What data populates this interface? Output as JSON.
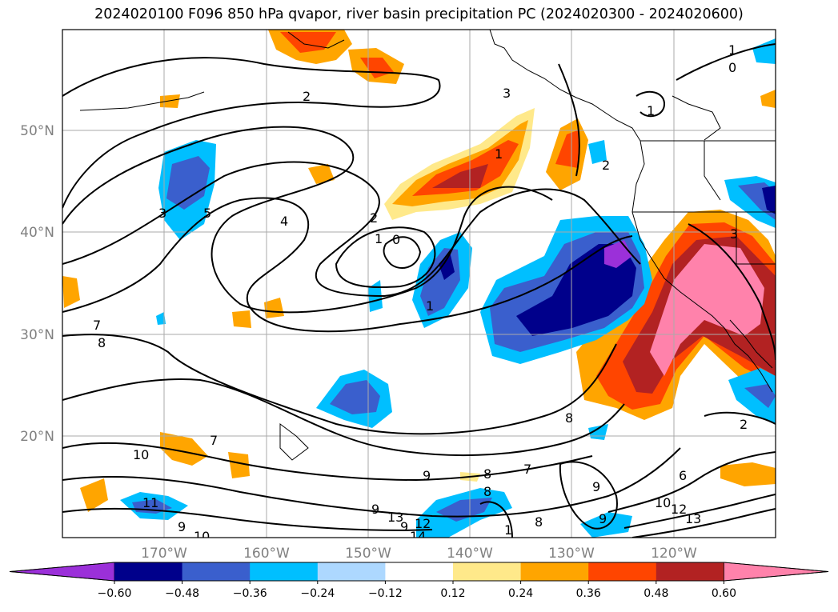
{
  "title": "2024020100 F096 850 hPa qvapor, river basin precipitation PC (2024020300 - 2024020600)",
  "lat_labels": [
    "50°N",
    "40°N",
    "30°N",
    "20°N"
  ],
  "lon_labels": [
    "170°W",
    "160°W",
    "150°W",
    "140°W",
    "130°W",
    "120°W"
  ],
  "colorbar": {
    "ticks": [
      "−0.60",
      "−0.48",
      "−0.36",
      "−0.24",
      "−0.12",
      "0.12",
      "0.24",
      "0.36",
      "0.48",
      "0.60"
    ],
    "colors": [
      "#9b30d9",
      "#00008b",
      "#3a5fcd",
      "#00bfff",
      "#add8ff",
      "#ffffff",
      "#ffe98a",
      "#ffa500",
      "#ff4500",
      "#b22222",
      "#ff82ab"
    ]
  },
  "contour_labels": [
    "1",
    "0",
    "1",
    "2",
    "3",
    "1",
    "2",
    "3",
    "4",
    "5",
    "3",
    "2",
    "1",
    "0",
    "7",
    "8",
    "7",
    "10",
    "11",
    "9",
    "10",
    "9",
    "9",
    "8",
    "7",
    "8",
    "9",
    "9",
    "8",
    "10",
    "12",
    "13",
    "6",
    "2",
    "8",
    "1",
    "9",
    "12",
    "13",
    "14",
    "1"
  ]
}
